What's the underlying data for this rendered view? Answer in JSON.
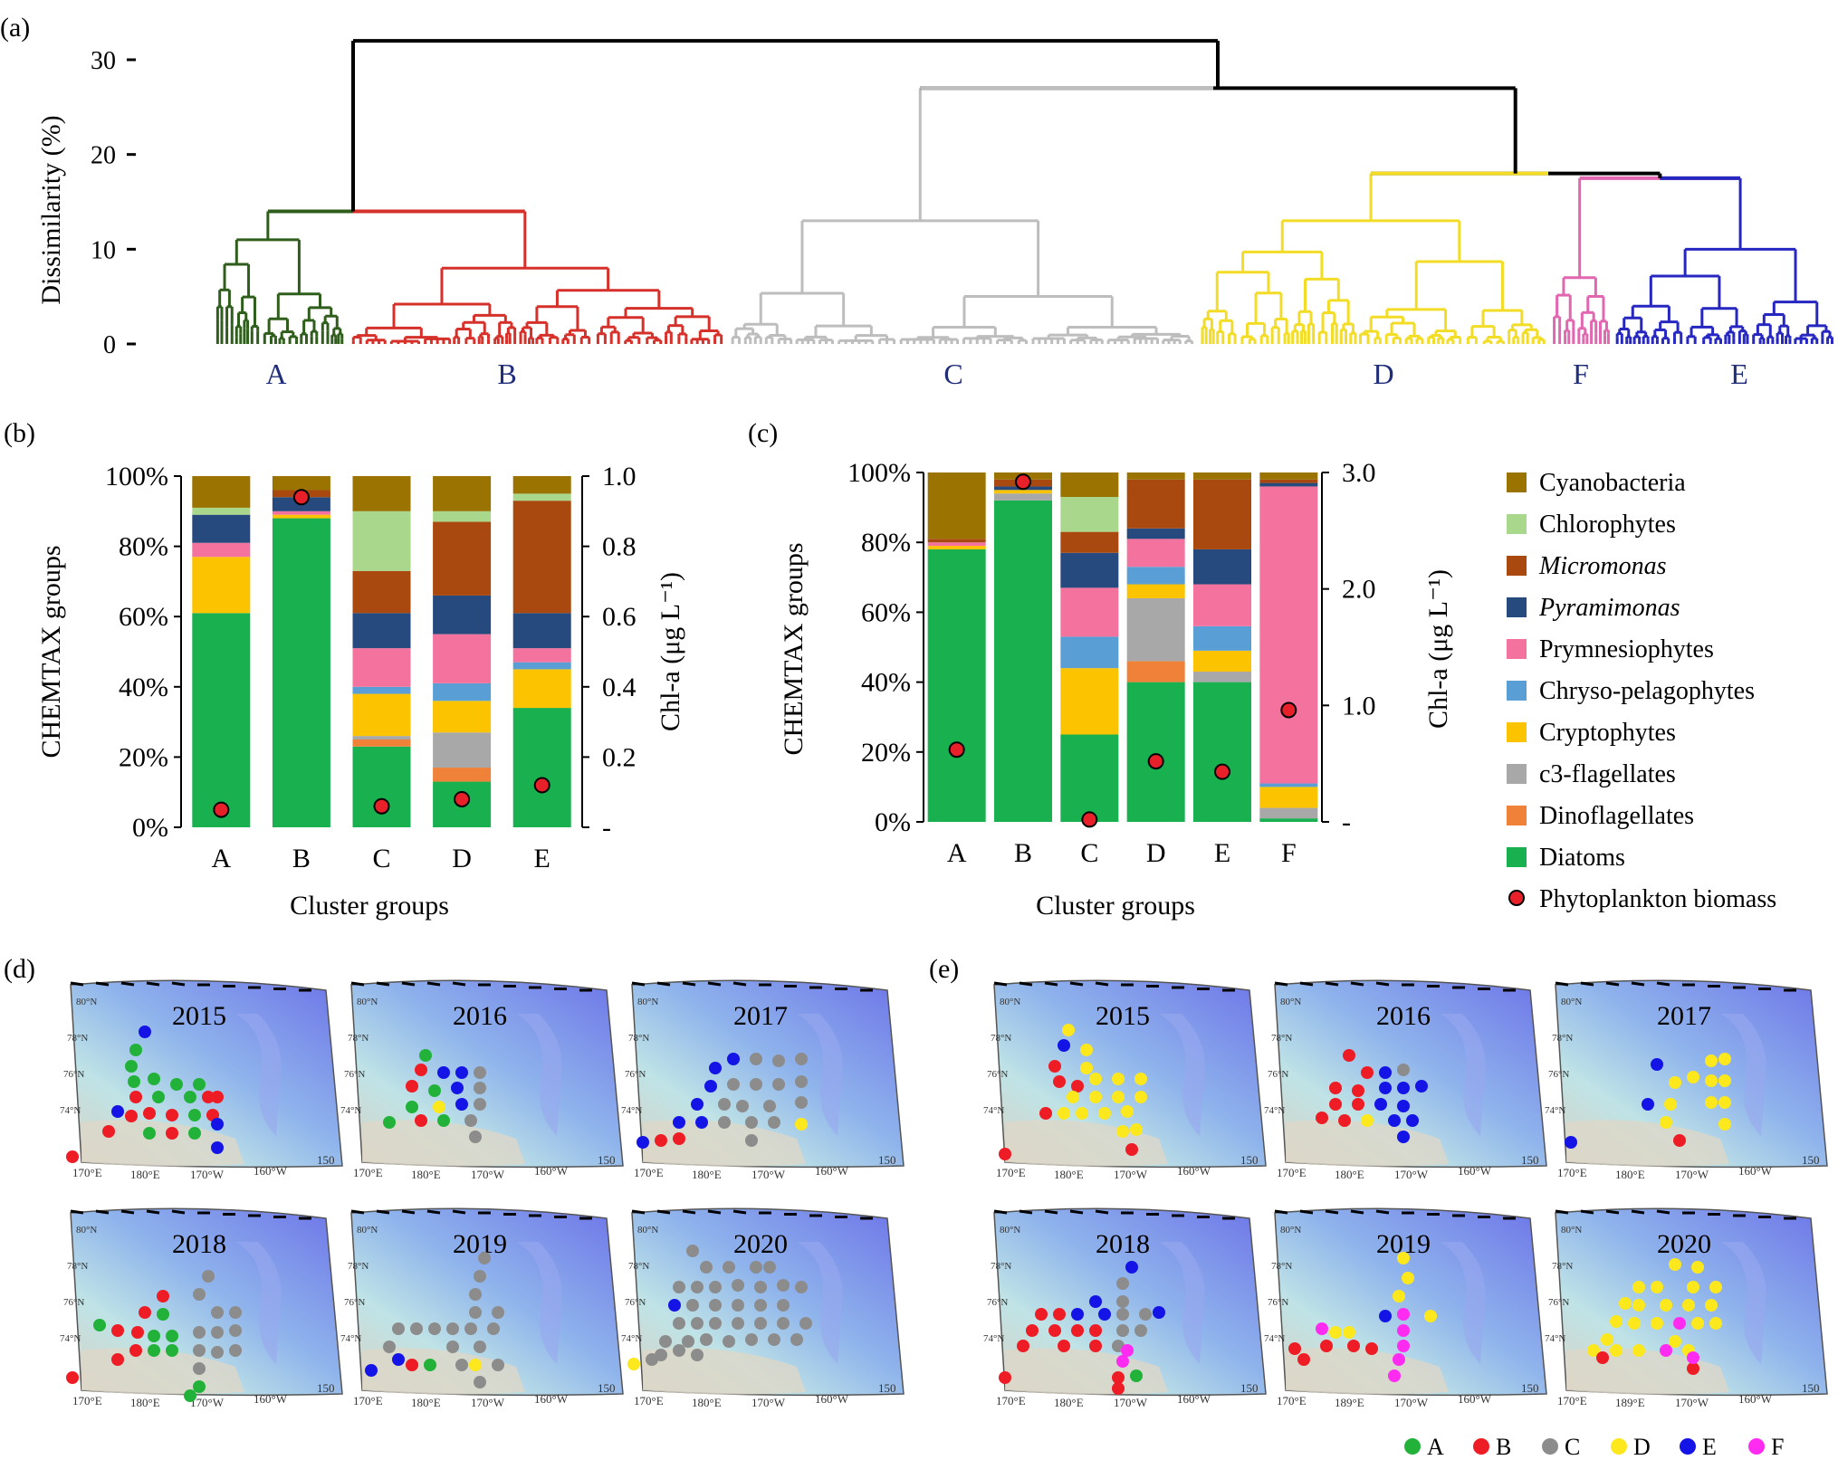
{
  "panels": {
    "a": "(a)",
    "b": "(b)",
    "c": "(c)",
    "d": "(d)",
    "e": "(e)"
  },
  "colors": {
    "Cyanobacteria": "#9a7300",
    "Chlorophytes": "#a9d88c",
    "Micromonas": "#a9490f",
    "Pyramimonas": "#264a7d",
    "Prymnesiophytes": "#f3739e",
    "Chryso-pelagophytes": "#5a9ed6",
    "Cryptophytes": "#fbc300",
    "c3-flagellates": "#a8a8a8",
    "Dinoflagellates": "#ef8238",
    "Diatoms": "#19b14f",
    "biomass_fill": "#e8202a",
    "cluster_A": "#2f5e1c",
    "cluster_B": "#d5302a",
    "cluster_C": "#bdbdbd",
    "cluster_D": "#f2dc25",
    "cluster_F": "#e067b0",
    "cluster_E": "#2626c0",
    "dot_A": "#22b23a",
    "dot_B": "#ee1c25",
    "dot_C": "#8c8c8c",
    "dot_D": "#fde81e",
    "dot_E": "#1414e6",
    "dot_F": "#ff2bf0"
  },
  "chart_data": [
    {
      "type": "dendrogram",
      "panel": "(a)",
      "ylabel": "Dissimilarity (%)",
      "ylim": [
        0,
        32
      ],
      "yticks": [
        "0",
        "10",
        "20",
        "30"
      ],
      "root_height": 32,
      "clusters": [
        {
          "label": "A",
          "merge_height": 14
        },
        {
          "label": "B",
          "merge_height": 14
        },
        {
          "label": "C",
          "merge_height": 27
        },
        {
          "label": "D",
          "merge_height": 18
        },
        {
          "label": "F",
          "merge_height": 17.5
        },
        {
          "label": "E",
          "merge_height": 17.5
        }
      ]
    },
    {
      "type": "stacked-bar",
      "panel": "(b)",
      "ylabel": "CHEMTAX groups",
      "y2label": "Chl-a (μg L⁻¹)",
      "xlabel": "Cluster groups",
      "categories": [
        "A",
        "B",
        "C",
        "D",
        "E"
      ],
      "yticks": [
        "0%",
        "20%",
        "40%",
        "60%",
        "80%",
        "100%"
      ],
      "y2ticks": [
        "-",
        "0.2",
        "0.4",
        "0.6",
        "0.8",
        "1.0"
      ],
      "y2lim": [
        0,
        1.0
      ],
      "series": [
        {
          "name": "Diatoms",
          "values": [
            61,
            88,
            23,
            13,
            34
          ]
        },
        {
          "name": "Dinoflagellates",
          "values": [
            0,
            0,
            2,
            4,
            0
          ]
        },
        {
          "name": "c3-flagellates",
          "values": [
            0,
            0,
            1,
            10,
            0
          ]
        },
        {
          "name": "Cryptophytes",
          "values": [
            16,
            1,
            12,
            9,
            11
          ]
        },
        {
          "name": "Chryso-pelagophytes",
          "values": [
            0,
            0,
            2,
            5,
            2
          ]
        },
        {
          "name": "Prymnesiophytes",
          "values": [
            4,
            1,
            11,
            14,
            4
          ]
        },
        {
          "name": "Pyramimonas",
          "values": [
            8,
            4,
            10,
            11,
            10
          ]
        },
        {
          "name": "Micromonas",
          "values": [
            0,
            2,
            12,
            21,
            32
          ]
        },
        {
          "name": "Chlorophytes",
          "values": [
            2,
            0,
            17,
            3,
            2
          ]
        },
        {
          "name": "Cyanobacteria",
          "values": [
            9,
            4,
            10,
            10,
            5
          ]
        }
      ],
      "biomass": [
        0.05,
        0.94,
        0.06,
        0.08,
        0.12
      ]
    },
    {
      "type": "stacked-bar",
      "panel": "(c)",
      "ylabel": "CHEMTAX groups",
      "y2label": "Chl-a (μg L⁻¹)",
      "xlabel": "Cluster groups",
      "categories": [
        "A",
        "B",
        "C",
        "D",
        "E",
        "F"
      ],
      "yticks": [
        "0%",
        "20%",
        "40%",
        "60%",
        "80%",
        "100%"
      ],
      "y2ticks": [
        "-",
        "1.0",
        "2.0",
        "3.0"
      ],
      "y2lim": [
        0,
        3.0
      ],
      "series": [
        {
          "name": "Diatoms",
          "values": [
            78,
            92,
            25,
            40,
            40,
            1
          ]
        },
        {
          "name": "Dinoflagellates",
          "values": [
            0,
            0,
            0,
            6,
            0,
            0
          ]
        },
        {
          "name": "c3-flagellates",
          "values": [
            0,
            2,
            0,
            18,
            3,
            3
          ]
        },
        {
          "name": "Cryptophytes",
          "values": [
            1,
            1,
            19,
            4,
            6,
            6
          ]
        },
        {
          "name": "Chryso-pelagophytes",
          "values": [
            0,
            0,
            9,
            5,
            7,
            1
          ]
        },
        {
          "name": "Prymnesiophytes",
          "values": [
            1,
            0,
            14,
            8,
            12,
            85
          ]
        },
        {
          "name": "Pyramimonas",
          "values": [
            0,
            1,
            10,
            3,
            10,
            1
          ]
        },
        {
          "name": "Micromonas",
          "values": [
            1,
            2,
            6,
            14,
            20,
            1
          ]
        },
        {
          "name": "Chlorophytes",
          "values": [
            0,
            0,
            10,
            0,
            0,
            0
          ]
        },
        {
          "name": "Cyanobacteria",
          "values": [
            19,
            2,
            7,
            2,
            2,
            2
          ]
        }
      ],
      "biomass": [
        0.62,
        2.92,
        0.02,
        0.52,
        0.43,
        0.96
      ]
    },
    {
      "type": "station-maps",
      "panel": "(d)",
      "years": [
        "2015",
        "2016",
        "2017",
        "2018",
        "2019",
        "2020"
      ]
    },
    {
      "type": "station-maps",
      "panel": "(e)",
      "years": [
        "2015",
        "2016",
        "2017",
        "2018",
        "2019",
        "2020"
      ]
    }
  ],
  "legend": {
    "items": [
      "Cyanobacteria",
      "Chlorophytes",
      "Micromonas",
      "Pyramimonas",
      "Prymnesiophytes",
      "Chryso-pelagophytes",
      "Cryptophytes",
      "c3-flagellates",
      "Dinoflagellates",
      "Diatoms"
    ],
    "italic": [
      "Micromonas",
      "Pyramimonas"
    ],
    "biomass_label": "Phytoplankton biomass"
  },
  "map_labels": {
    "lats": [
      "80°N",
      "78°N",
      "76°N",
      "74°N"
    ],
    "lons": [
      "170°E",
      "180°E",
      "170°W",
      "160°W",
      "150"
    ],
    "lons_alt": [
      "170°E",
      "189°E",
      "170°W",
      "160°W",
      "150"
    ]
  },
  "dot_legend": [
    "A",
    "B",
    "C",
    "D",
    "E",
    "F"
  ]
}
